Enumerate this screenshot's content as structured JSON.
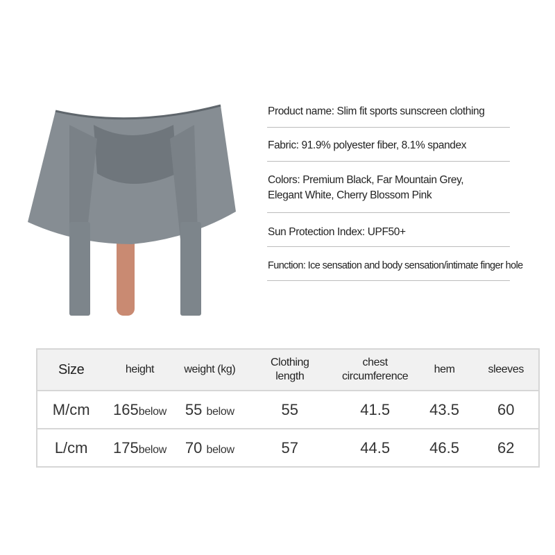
{
  "specs": {
    "product_name": "Product name: Slim fit sports sunscreen clothing",
    "fabric": "Fabric: 91.9% polyester fiber, 8.1% spandex",
    "colors_line1": "Colors: Premium Black, Far Mountain Grey,",
    "colors_line2": "Elegant White, Cherry Blossom Pink",
    "sun_protection": "Sun Protection Index: UPF50+",
    "function": "Function: Ice sensation and body sensation/intimate finger hole"
  },
  "size_table": {
    "headers": [
      "Size",
      "height",
      "weight (kg)",
      "Clothing length",
      "chest circumference",
      "hem",
      "sleeves"
    ],
    "rows": [
      {
        "size": "M/cm",
        "height": "165",
        "height_note": "below",
        "weight": "55",
        "weight_note": "below",
        "length": "55",
        "chest": "41.5",
        "hem": "43.5",
        "sleeves": "60"
      },
      {
        "size": "L/cm",
        "height": "175",
        "height_note": "below",
        "weight": "70",
        "weight_note": "below",
        "length": "57",
        "chest": "44.5",
        "hem": "46.5",
        "sleeves": "62"
      }
    ]
  },
  "colors": {
    "garment": "#7b8288",
    "skin": "#c98a72"
  }
}
